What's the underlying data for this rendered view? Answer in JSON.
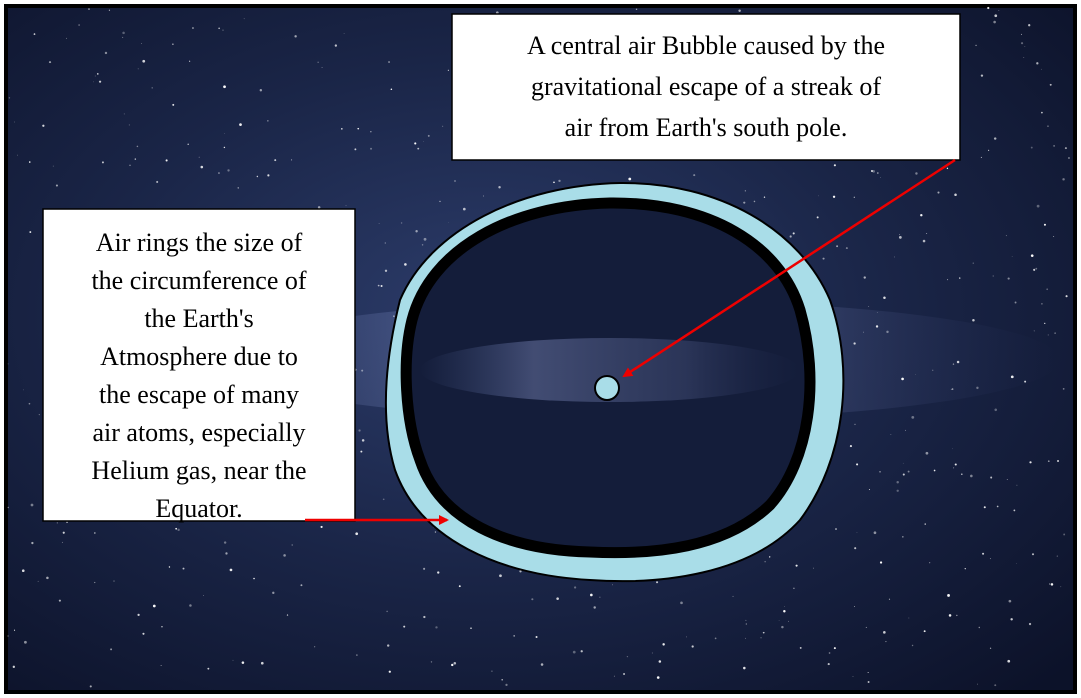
{
  "callouts": [
    {
      "lines": [
        "A central air Bubble caused by the",
        "gravitational escape of a streak of",
        "air from Earth's south pole."
      ]
    },
    {
      "lines": [
        "Air rings the size of",
        "the circumference of",
        "the Earth's",
        "Atmosphere due to",
        "the escape of many",
        "air atoms, especially",
        "Helium gas, near the",
        "Equator."
      ]
    }
  ]
}
